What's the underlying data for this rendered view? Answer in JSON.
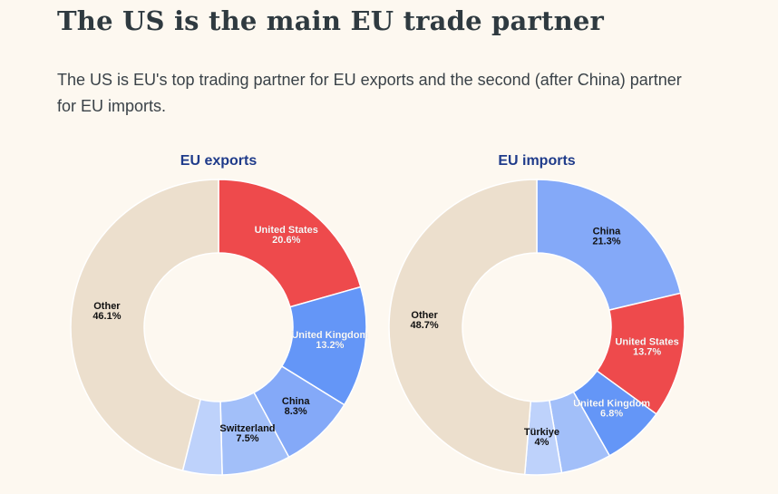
{
  "header": {
    "title": "The US is the main EU trade partner",
    "subtitle": "The US is EU's top trading partner for EU exports and the second (after China) partner for EU imports."
  },
  "chart_data": [
    {
      "type": "pie",
      "subtype": "donut",
      "title": "EU exports",
      "unit": "%",
      "slices": [
        {
          "label": "United States",
          "value": 20.6,
          "color": "#ee4a4c",
          "show_label": true
        },
        {
          "label": "United Kingdom",
          "value": 13.2,
          "color": "#6496f7",
          "show_label": true
        },
        {
          "label": "China",
          "value": 8.3,
          "color": "#84a9f8",
          "show_label": true
        },
        {
          "label": "Switzerland",
          "value": 7.5,
          "color": "#a2bff9",
          "show_label": true
        },
        {
          "label": "",
          "value": 4.3,
          "color": "#bed2fb",
          "show_label": false
        },
        {
          "label": "Other",
          "value": 46.1,
          "color": "#ecdfcd",
          "show_label": true
        }
      ]
    },
    {
      "type": "pie",
      "subtype": "donut",
      "title": "EU imports",
      "unit": "%",
      "slices": [
        {
          "label": "China",
          "value": 21.3,
          "color": "#84a9f8",
          "show_label": true
        },
        {
          "label": "United States",
          "value": 13.7,
          "color": "#ee4a4c",
          "show_label": true
        },
        {
          "label": "United Kingdom",
          "value": 6.8,
          "color": "#6496f7",
          "show_label": true
        },
        {
          "label": "",
          "value": 5.5,
          "color": "#a2bff9",
          "show_label": false
        },
        {
          "label": "Türkiye",
          "value": 4.0,
          "color": "#bed2fb",
          "show_label": true
        },
        {
          "label": "Other",
          "value": 48.7,
          "color": "#ecdfcd",
          "show_label": true
        }
      ]
    }
  ]
}
